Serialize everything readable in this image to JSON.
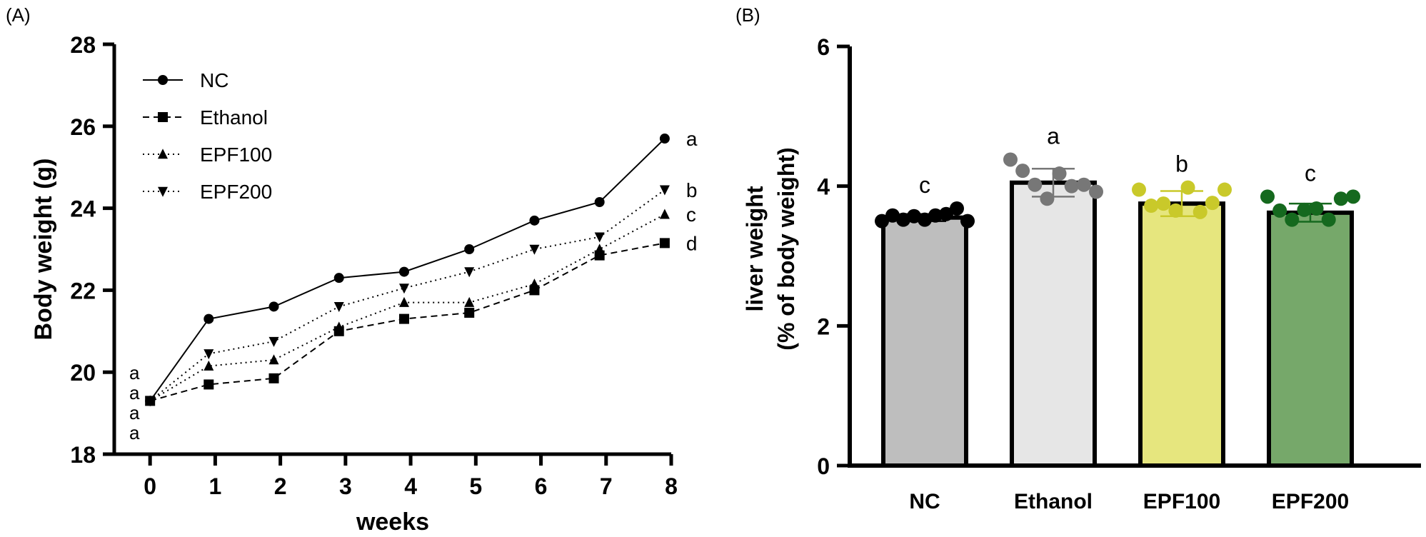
{
  "panels": {
    "a_label": "(A)",
    "b_label": "(B)"
  },
  "chart_data": [
    {
      "type": "line",
      "title": "",
      "xlabel": "weeks",
      "ylabel": "Body weight (g)",
      "xlim": [
        -0.55,
        8
      ],
      "ylim": [
        18,
        28
      ],
      "x_ticks": [
        "0",
        "1",
        "2",
        "3",
        "4",
        "5",
        "6",
        "7",
        "8"
      ],
      "y_ticks": [
        "18",
        "20",
        "22",
        "24",
        "26",
        "28"
      ],
      "legend_position": "top-left",
      "x": [
        0,
        0.9,
        1.9,
        2.9,
        3.9,
        4.9,
        5.9,
        6.9,
        7.9
      ],
      "series": [
        {
          "name": "NC",
          "marker": "circle",
          "dash": "solid",
          "letter": "a",
          "values": [
            19.3,
            21.3,
            21.6,
            22.3,
            22.45,
            23.0,
            23.7,
            24.15,
            25.7
          ]
        },
        {
          "name": "Ethanol",
          "marker": "square",
          "dash": "dashed",
          "letter": "d",
          "values": [
            19.3,
            19.7,
            19.85,
            21.0,
            21.3,
            21.45,
            22.0,
            22.85,
            23.15
          ]
        },
        {
          "name": "EPF100",
          "marker": "triangle-up",
          "dash": "dotted",
          "letter": "c",
          "values": [
            19.3,
            20.15,
            20.3,
            21.1,
            21.7,
            21.7,
            22.15,
            23.0,
            23.85
          ]
        },
        {
          "name": "EPF200",
          "marker": "triangle-down",
          "dash": "dotted",
          "letter": "b",
          "values": [
            19.3,
            20.45,
            20.75,
            21.6,
            22.05,
            22.45,
            23.0,
            23.3,
            24.45
          ]
        }
      ],
      "start_letters": [
        "a",
        "a",
        "a",
        "a"
      ]
    },
    {
      "type": "bar",
      "title": "",
      "xlabel": "",
      "ylabel": [
        "liver weight",
        "(% of body weight)"
      ],
      "ylim": [
        0,
        6
      ],
      "y_ticks": [
        "0",
        "2",
        "4",
        "6"
      ],
      "categories": [
        "NC",
        "Ethanol",
        "EPF100",
        "EPF200"
      ],
      "values": [
        3.55,
        4.05,
        3.75,
        3.62
      ],
      "errors": [
        0.05,
        0.2,
        0.18,
        0.13
      ],
      "letters": [
        "c",
        "a",
        "b",
        "c"
      ],
      "bar_colors": [
        "#bebebe",
        "#e6e6e6",
        "#e6e67e",
        "#76a86a"
      ],
      "dot_colors": [
        "#000000",
        "#777777",
        "#c9c92a",
        "#15691e"
      ],
      "points": [
        [
          3.5,
          3.58,
          3.52,
          3.57,
          3.52,
          3.58,
          3.6,
          3.68,
          3.5
        ],
        [
          4.38,
          4.22,
          4.02,
          3.82,
          4.18,
          4.0,
          4.02,
          3.92
        ],
        [
          3.95,
          3.72,
          3.75,
          3.65,
          3.98,
          3.63,
          3.76,
          3.95
        ],
        [
          3.85,
          3.65,
          3.52,
          3.66,
          3.68,
          3.52,
          3.82,
          3.85
        ]
      ]
    }
  ]
}
